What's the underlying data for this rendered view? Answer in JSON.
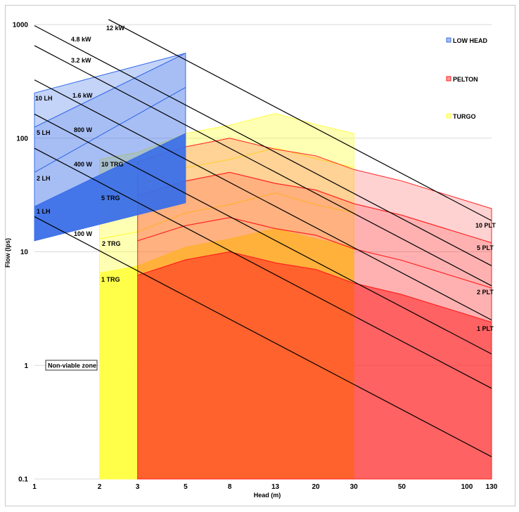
{
  "chart_data": {
    "type": "area",
    "title": "",
    "xlabel": "Head (m)",
    "ylabel": "Flow (lps)",
    "xscale": "log",
    "yscale": "log",
    "xlim": [
      1,
      130
    ],
    "ylim": [
      0.1,
      1000
    ],
    "x_ticks": [
      1,
      2,
      3,
      5,
      8,
      13,
      20,
      30,
      50,
      100,
      130
    ],
    "y_ticks": [
      0.1,
      1,
      10,
      100,
      1000
    ],
    "y_tick_labels": [
      "0.1",
      "1",
      "10",
      "100",
      "1000"
    ],
    "grid": "horizontal",
    "legend_position": "right",
    "legend": [
      {
        "key": "low_head",
        "label": "LOW HEAD",
        "color": "#3B6FE8"
      },
      {
        "key": "pelton",
        "label": "PELTON",
        "color": "#FF2020"
      },
      {
        "key": "turgo",
        "label": "TURGO",
        "color": "#FFFF40"
      }
    ],
    "annotation": "Non-viable zone",
    "power_lines": [
      {
        "label": "100 W",
        "x": [
          1,
          130
        ],
        "y": [
          20.4,
          0.157
        ]
      },
      {
        "label": "400 W",
        "x": [
          1,
          130
        ],
        "y": [
          81.6,
          0.628
        ]
      },
      {
        "label": "800 W",
        "x": [
          1,
          130
        ],
        "y": [
          163,
          1.26
        ]
      },
      {
        "label": "1.6 kW",
        "x": [
          1,
          130
        ],
        "y": [
          326,
          2.51
        ]
      },
      {
        "label": "3.2 kW",
        "x": [
          1,
          130
        ],
        "y": [
          653,
          5.02
        ]
      },
      {
        "label": "4.8 kW",
        "x": [
          1,
          130
        ],
        "y": [
          979,
          7.53
        ]
      },
      {
        "label": "12 kW",
        "x": [
          2.2,
          130
        ],
        "y": [
          1110,
          18.8
        ]
      }
    ],
    "series": [
      {
        "name": "TURGO",
        "group": "turgo",
        "label": "1 TRG",
        "color": "#FFFF40",
        "opacity": 0.95,
        "x": [
          2,
          3,
          5,
          8,
          13,
          20,
          30
        ],
        "y": [
          6.5,
          7.5,
          11,
          13,
          16,
          13,
          11
        ],
        "baseline": 0.1
      },
      {
        "name": "TURGO",
        "group": "turgo",
        "label": "2 TRG",
        "color": "#FFFF40",
        "opacity": 0.4,
        "x": [
          2,
          3,
          5,
          8,
          13,
          20,
          30
        ],
        "y": [
          13,
          15,
          22,
          26,
          33,
          26,
          22
        ],
        "baseline_series": "1 TRG"
      },
      {
        "name": "TURGO",
        "group": "turgo",
        "label": "5 TRG",
        "color": "#FFFF40",
        "opacity": 0.4,
        "x": [
          2,
          3,
          5,
          8,
          13,
          20,
          30
        ],
        "y": [
          33,
          38,
          55,
          65,
          82,
          66,
          55
        ],
        "baseline_series": "2 TRG"
      },
      {
        "name": "TURGO",
        "group": "turgo",
        "label": "10 TRG",
        "color": "#FFFF40",
        "opacity": 0.4,
        "x": [
          2,
          3,
          5,
          8,
          13,
          20,
          30
        ],
        "y": [
          65,
          75,
          110,
          130,
          165,
          132,
          110
        ],
        "baseline_series": "5 TRG"
      },
      {
        "name": "PELTON",
        "group": "pelton",
        "label": "1 PLT",
        "color": "#FF2020",
        "opacity": 0.7,
        "x": [
          3,
          5,
          8,
          13,
          20,
          30,
          50,
          130
        ],
        "y": [
          6.2,
          8.5,
          10,
          8,
          7,
          5.3,
          4.2,
          2.4
        ],
        "baseline": 0.1
      },
      {
        "name": "PELTON",
        "group": "pelton",
        "label": "2 PLT",
        "color": "#FF2020",
        "opacity": 0.35,
        "x": [
          3,
          5,
          8,
          13,
          20,
          30,
          50,
          130
        ],
        "y": [
          12.5,
          17,
          20,
          16,
          14,
          10.6,
          8.4,
          4.8
        ],
        "baseline_series": "1 PLT"
      },
      {
        "name": "PELTON",
        "group": "pelton",
        "label": "5 PLT",
        "color": "#FF2020",
        "opacity": 0.35,
        "x": [
          3,
          5,
          8,
          13,
          20,
          30,
          50,
          130
        ],
        "y": [
          31,
          42,
          50,
          40,
          35,
          26.5,
          21,
          12
        ],
        "baseline_series": "2 PLT"
      },
      {
        "name": "PELTON",
        "group": "pelton",
        "label": "10 PLT",
        "color": "#FF2020",
        "opacity": 0.2,
        "x": [
          3,
          5,
          8,
          13,
          20,
          30,
          50,
          130
        ],
        "y": [
          62,
          84,
          100,
          80,
          70,
          53,
          42,
          24
        ],
        "baseline_series": "5 PLT"
      },
      {
        "name": "LOW HEAD",
        "group": "low_head",
        "label": "1 LH",
        "color": "#3B6FE8",
        "opacity": 0.95,
        "x": [
          1,
          5
        ],
        "y": [
          25,
          110
        ],
        "baseline": [
          12.5,
          27
        ]
      },
      {
        "name": "LOW HEAD",
        "group": "low_head",
        "label": "2 LH",
        "color": "#3B6FE8",
        "opacity": 0.45,
        "x": [
          1,
          5
        ],
        "y": [
          50,
          280
        ],
        "baseline_series": "1 LH"
      },
      {
        "name": "LOW HEAD",
        "group": "low_head",
        "label": "5 LH",
        "color": "#3B6FE8",
        "opacity": 0.45,
        "x": [
          1,
          5
        ],
        "y": [
          125,
          560
        ],
        "baseline_series": "2 LH"
      },
      {
        "name": "LOW HEAD",
        "group": "low_head",
        "label": "10 LH",
        "color": "#3B6FE8",
        "opacity": 0.3,
        "x": [
          1,
          5
        ],
        "y": [
          250,
          560
        ],
        "baseline_series": "5 LH"
      }
    ]
  }
}
